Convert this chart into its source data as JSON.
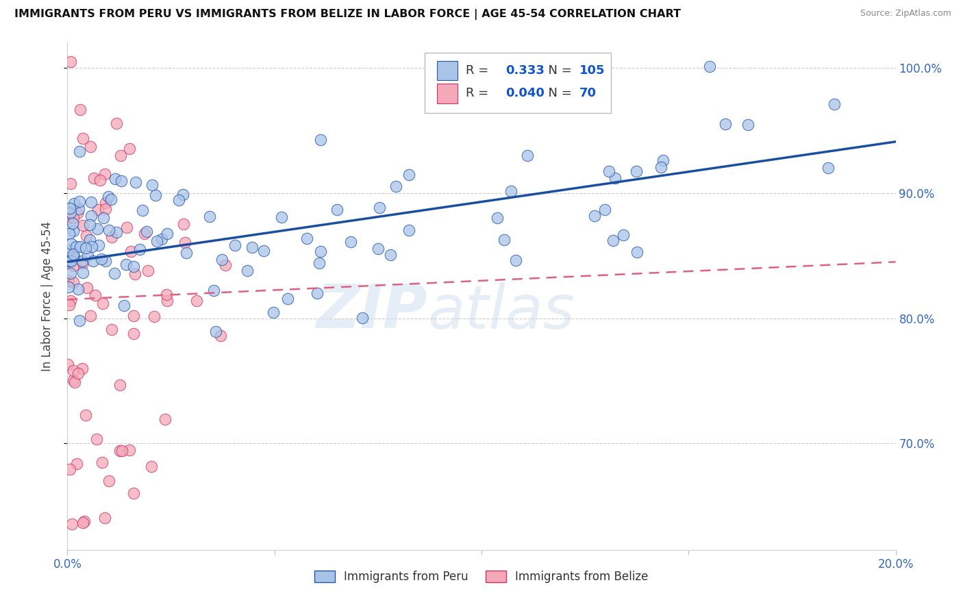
{
  "title": "IMMIGRANTS FROM PERU VS IMMIGRANTS FROM BELIZE IN LABOR FORCE | AGE 45-54 CORRELATION CHART",
  "source": "Source: ZipAtlas.com",
  "ylabel": "In Labor Force | Age 45-54",
  "xlim": [
    0.0,
    0.2
  ],
  "ylim": [
    0.615,
    1.02
  ],
  "y_ticks": [
    0.7,
    0.8,
    0.9,
    1.0
  ],
  "r_peru": 0.333,
  "n_peru": 105,
  "r_belize": 0.04,
  "n_belize": 70,
  "color_peru_fill": "#aac4e8",
  "color_peru_edge": "#2255aa",
  "color_belize_fill": "#f4a8b8",
  "color_belize_edge": "#cc3366",
  "color_peru_line": "#1a4fa0",
  "color_belize_line": "#e06080",
  "background_color": "#ffffff",
  "grid_color": "#cccccc",
  "legend_color": "#1155cc",
  "watermark_zip": "ZIP",
  "watermark_atlas": "atlas"
}
